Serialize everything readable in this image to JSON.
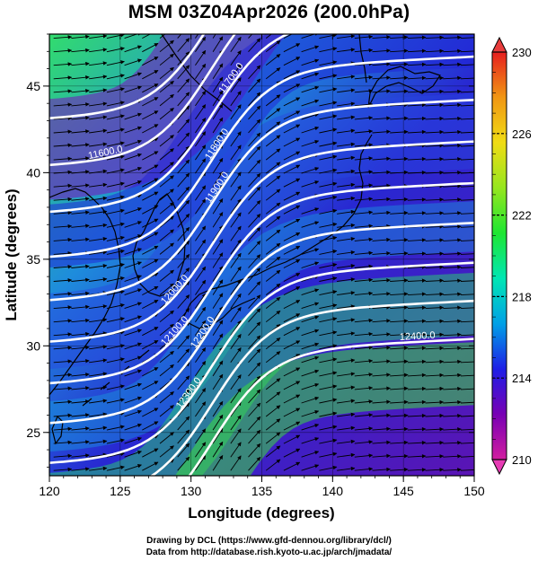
{
  "title": "MSM 03Z04Apr2026 (200.0hPa)",
  "map": {
    "xlabel": "Longitude (degrees)",
    "ylabel": "Latitude  (degrees)",
    "xlim": [
      120,
      150
    ],
    "ylim": [
      22.5,
      48
    ],
    "x_ticks": [
      "120",
      "125",
      "130",
      "135",
      "140",
      "145",
      "150"
    ],
    "y_ticks": [
      "25",
      "30",
      "35",
      "40",
      "45"
    ],
    "contour_labels": [
      "11600.0",
      "11600.0",
      "11700.0",
      "11800.0",
      "11900.0",
      "12000.0",
      "12100.0",
      "12200.0",
      "12300.0",
      "12400.0"
    ],
    "wind_vectors": "arrows flowing west-southwest to east-northeast",
    "colorbar": {
      "min": 210,
      "max": 230,
      "tick_labels": [
        "230",
        "226",
        "222",
        "218",
        "214",
        "210"
      ],
      "colors": [
        "#d21ea0",
        "#7800b4",
        "#1e1ee6",
        "#00a0e6",
        "#00e6b4",
        "#1ee632",
        "#96e61e",
        "#f0dc14",
        "#f09614",
        "#e61e1e"
      ]
    }
  },
  "credits": {
    "line1": "Drawing by DCL (https://www.gfd-dennou.org/library/dcl/)",
    "line2": "Data from http://database.rish.kyoto-u.ac.jp/arch/jmadata/"
  }
}
